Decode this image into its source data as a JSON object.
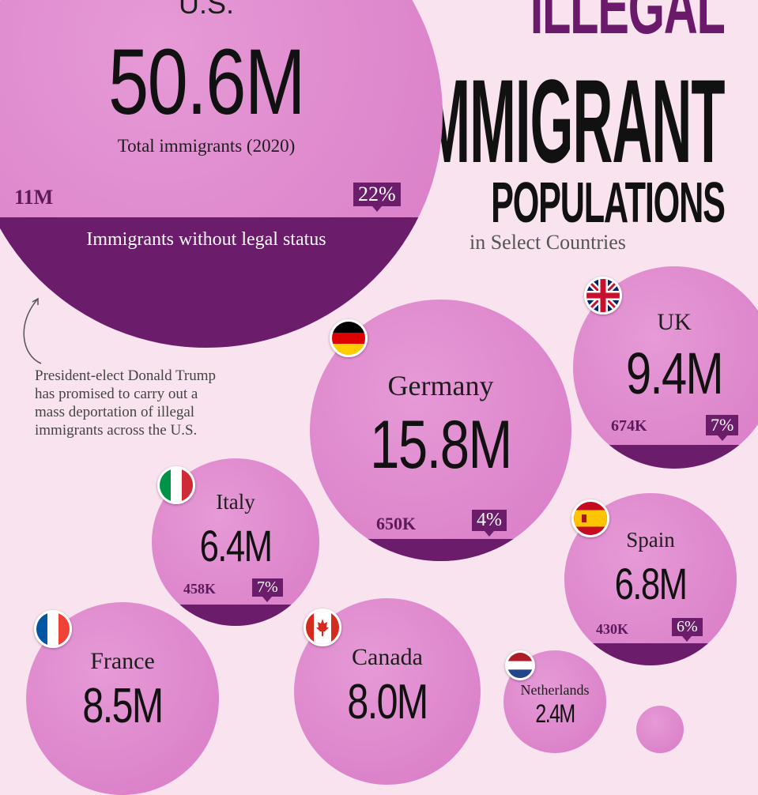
{
  "title": {
    "line1": "ILLEGAL",
    "line2": "IMMIGRANT",
    "line3": "POPULATIONS",
    "subtitle": "in Select Countries"
  },
  "note": {
    "lines": [
      "President-elect Donald Trump",
      "has promised to carry out a",
      "mass deportation of illegal",
      "immigrants across the U.S."
    ]
  },
  "us": {
    "total_label": "Total immigrants (2020)",
    "band_label": "Immigrants without legal status"
  },
  "chart_data": {
    "type": "bubble",
    "series": [
      {
        "country": "U.S.",
        "total": "50.6M",
        "total_millions": 50.6,
        "illegal": "11M",
        "share": "22%",
        "flag": "us-flag"
      },
      {
        "country": "Germany",
        "total": "15.8M",
        "total_millions": 15.8,
        "illegal": "650K",
        "share": "4%",
        "flag": "germany-flag"
      },
      {
        "country": "UK",
        "total": "9.4M",
        "total_millions": 9.4,
        "illegal": "674K",
        "share": "7%",
        "flag": "uk-flag"
      },
      {
        "country": "Italy",
        "total": "6.4M",
        "total_millions": 6.4,
        "illegal": "458K",
        "share": "7%",
        "flag": "italy-flag"
      },
      {
        "country": "Spain",
        "total": "6.8M",
        "total_millions": 6.8,
        "illegal": "430K",
        "share": "6%",
        "flag": "spain-flag"
      },
      {
        "country": "France",
        "total": "8.5M",
        "total_millions": 8.5,
        "illegal": "",
        "share": "",
        "flag": "france-flag"
      },
      {
        "country": "Canada",
        "total": "8.0M",
        "total_millions": 8.0,
        "illegal": "",
        "share": "",
        "flag": "canada-flag"
      },
      {
        "country": "Netherlands",
        "total": "2.4M",
        "total_millions": 2.4,
        "illegal": "",
        "share": "",
        "flag": "netherlands-flag"
      }
    ]
  },
  "colors": {
    "background": "#f9e3ef",
    "bubble": "#dd86cc",
    "band": "#6b1d6b",
    "accent": "#6b1a6b"
  }
}
